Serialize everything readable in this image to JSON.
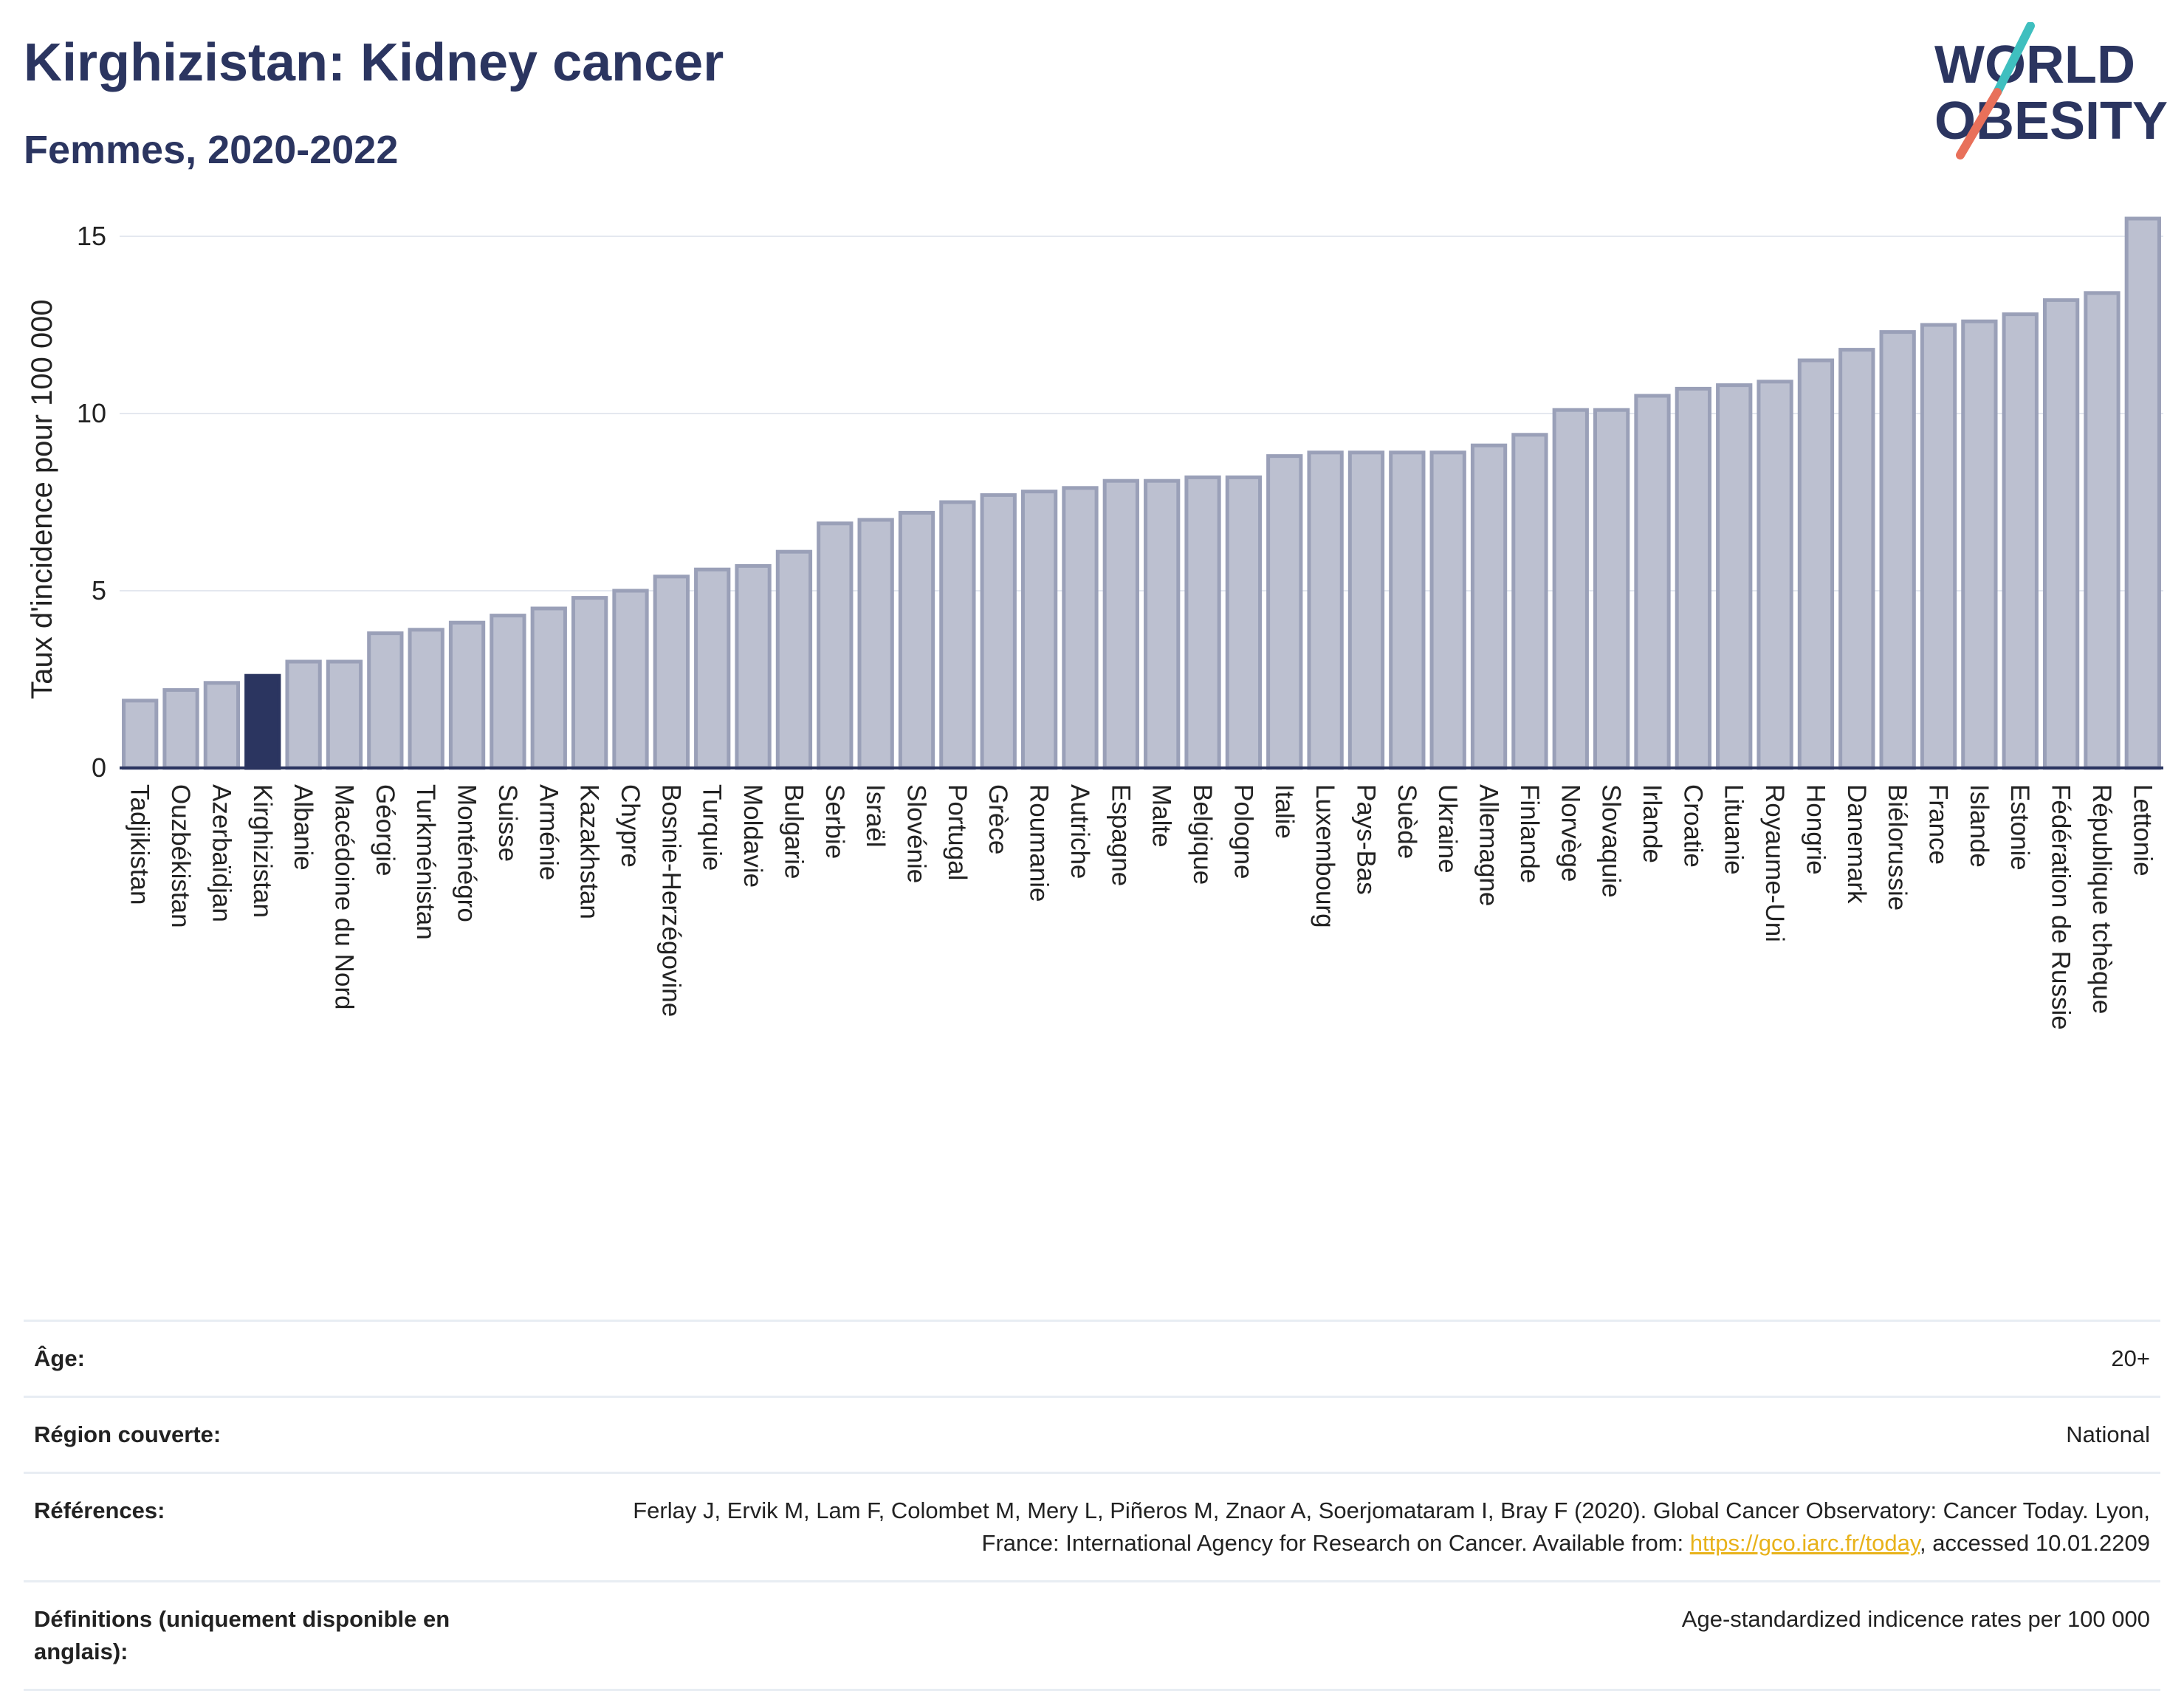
{
  "header": {
    "title": "Kirghizistan: Kidney cancer",
    "subtitle": "Femmes, 2020-2022",
    "logo_line1": "WORLD",
    "logo_line2": "OBESITY"
  },
  "colors": {
    "bar": "#bcc0d0",
    "bar_stroke": "#9aa0b8",
    "highlight": "#2b3560",
    "text": "#2b3560",
    "grid": "#e4e8ef",
    "link": "#e8b21a",
    "logo_slash_top": "#3fbfbf",
    "logo_slash_bottom": "#e8705a"
  },
  "chart_data": {
    "type": "bar",
    "ylabel": "Taux d'incidence pour 100 000",
    "ylim": [
      0,
      16
    ],
    "yticks": [
      0,
      5,
      10,
      15
    ],
    "grid": true,
    "highlight": "Kirghizistan",
    "categories": [
      "Tadjikistan",
      "Ouzbékistan",
      "Azerbaïdjan",
      "Kirghizistan",
      "Albanie",
      "Macédoine du Nord",
      "Géorgie",
      "Turkménistan",
      "Monténégro",
      "Suisse",
      "Arménie",
      "Kazakhstan",
      "Chypre",
      "Bosnie-Herzégovine",
      "Turquie",
      "Moldavie",
      "Bulgarie",
      "Serbie",
      "Israël",
      "Slovénie",
      "Portugal",
      "Grèce",
      "Roumanie",
      "Autriche",
      "Espagne",
      "Malte",
      "Belgique",
      "Pologne",
      "Italie",
      "Luxembourg",
      "Pays-Bas",
      "Suède",
      "Ukraine",
      "Allemagne",
      "Finlande",
      "Norvège",
      "Slovaquie",
      "Irlande",
      "Croatie",
      "Lituanie",
      "Royaume-Uni",
      "Hongrie",
      "Danemark",
      "Biélorussie",
      "France",
      "Islande",
      "Estonie",
      "Fédération de Russie",
      "République tchèque",
      "Lettonie"
    ],
    "values": [
      1.9,
      2.2,
      2.4,
      2.6,
      3.0,
      3.0,
      3.8,
      3.9,
      4.1,
      4.3,
      4.5,
      4.8,
      5.0,
      5.4,
      5.6,
      5.7,
      6.1,
      6.9,
      7.0,
      7.2,
      7.5,
      7.7,
      7.8,
      7.9,
      8.1,
      8.1,
      8.2,
      8.2,
      8.8,
      8.9,
      8.9,
      8.9,
      8.9,
      9.1,
      9.4,
      10.1,
      10.1,
      10.5,
      10.7,
      10.8,
      10.9,
      11.5,
      11.8,
      12.3,
      12.5,
      12.6,
      12.8,
      13.2,
      13.4,
      15.5
    ]
  },
  "meta": {
    "rows": [
      {
        "label": "Âge:",
        "value": "20+"
      },
      {
        "label": "Région couverte:",
        "value": "National"
      },
      {
        "label": "Références:",
        "value_pre": "Ferlay J, Ervik M, Lam F, Colombet M, Mery L, Piñeros M, Znaor A, Soerjomataram I, Bray F (2020). Global Cancer Observatory: Cancer Today. Lyon, France: International Agency for Research on Cancer. Available from: ",
        "link": "https://gco.iarc.fr/today",
        "value_post": ", accessed 10.01.2209"
      },
      {
        "label": "Définitions (uniquement disponible en anglais):",
        "value": "Age-standardized indicence rates per 100 000"
      }
    ]
  }
}
